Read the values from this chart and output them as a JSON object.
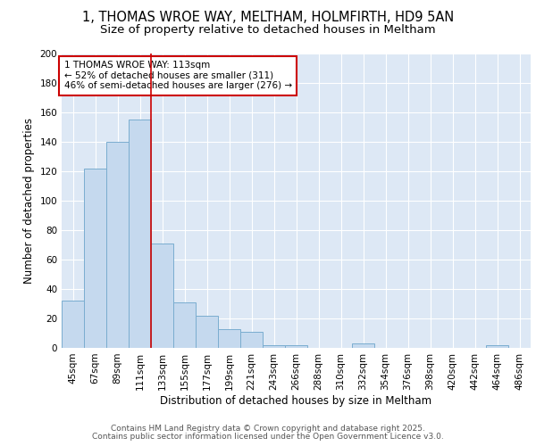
{
  "title_line1": "1, THOMAS WROE WAY, MELTHAM, HOLMFIRTH, HD9 5AN",
  "title_line2": "Size of property relative to detached houses in Meltham",
  "xlabel": "Distribution of detached houses by size in Meltham",
  "ylabel": "Number of detached properties",
  "bar_labels": [
    "45sqm",
    "67sqm",
    "89sqm",
    "111sqm",
    "133sqm",
    "155sqm",
    "177sqm",
    "199sqm",
    "221sqm",
    "243sqm",
    "266sqm",
    "288sqm",
    "310sqm",
    "332sqm",
    "354sqm",
    "376sqm",
    "398sqm",
    "420sqm",
    "442sqm",
    "464sqm",
    "486sqm"
  ],
  "bar_values": [
    32,
    122,
    140,
    155,
    71,
    31,
    22,
    13,
    11,
    2,
    2,
    0,
    0,
    3,
    0,
    0,
    0,
    0,
    0,
    2,
    0
  ],
  "bar_color": "#c5d9ee",
  "bar_edgecolor": "#7aadcf",
  "red_line_index": 3,
  "red_line_color": "#cc0000",
  "annotation_text": "1 THOMAS WROE WAY: 113sqm\n← 52% of detached houses are smaller (311)\n46% of semi-detached houses are larger (276) →",
  "annotation_box_color": "white",
  "annotation_edge_color": "#cc0000",
  "ylim": [
    0,
    200
  ],
  "yticks": [
    0,
    20,
    40,
    60,
    80,
    100,
    120,
    140,
    160,
    180,
    200
  ],
  "background_color": "#dde8f5",
  "grid_color": "white",
  "footer_line1": "Contains HM Land Registry data © Crown copyright and database right 2025.",
  "footer_line2": "Contains public sector information licensed under the Open Government Licence v3.0.",
  "title_fontsize": 10.5,
  "subtitle_fontsize": 9.5,
  "axis_label_fontsize": 8.5,
  "tick_fontsize": 7.5,
  "annotation_fontsize": 7.5,
  "footer_fontsize": 6.5
}
